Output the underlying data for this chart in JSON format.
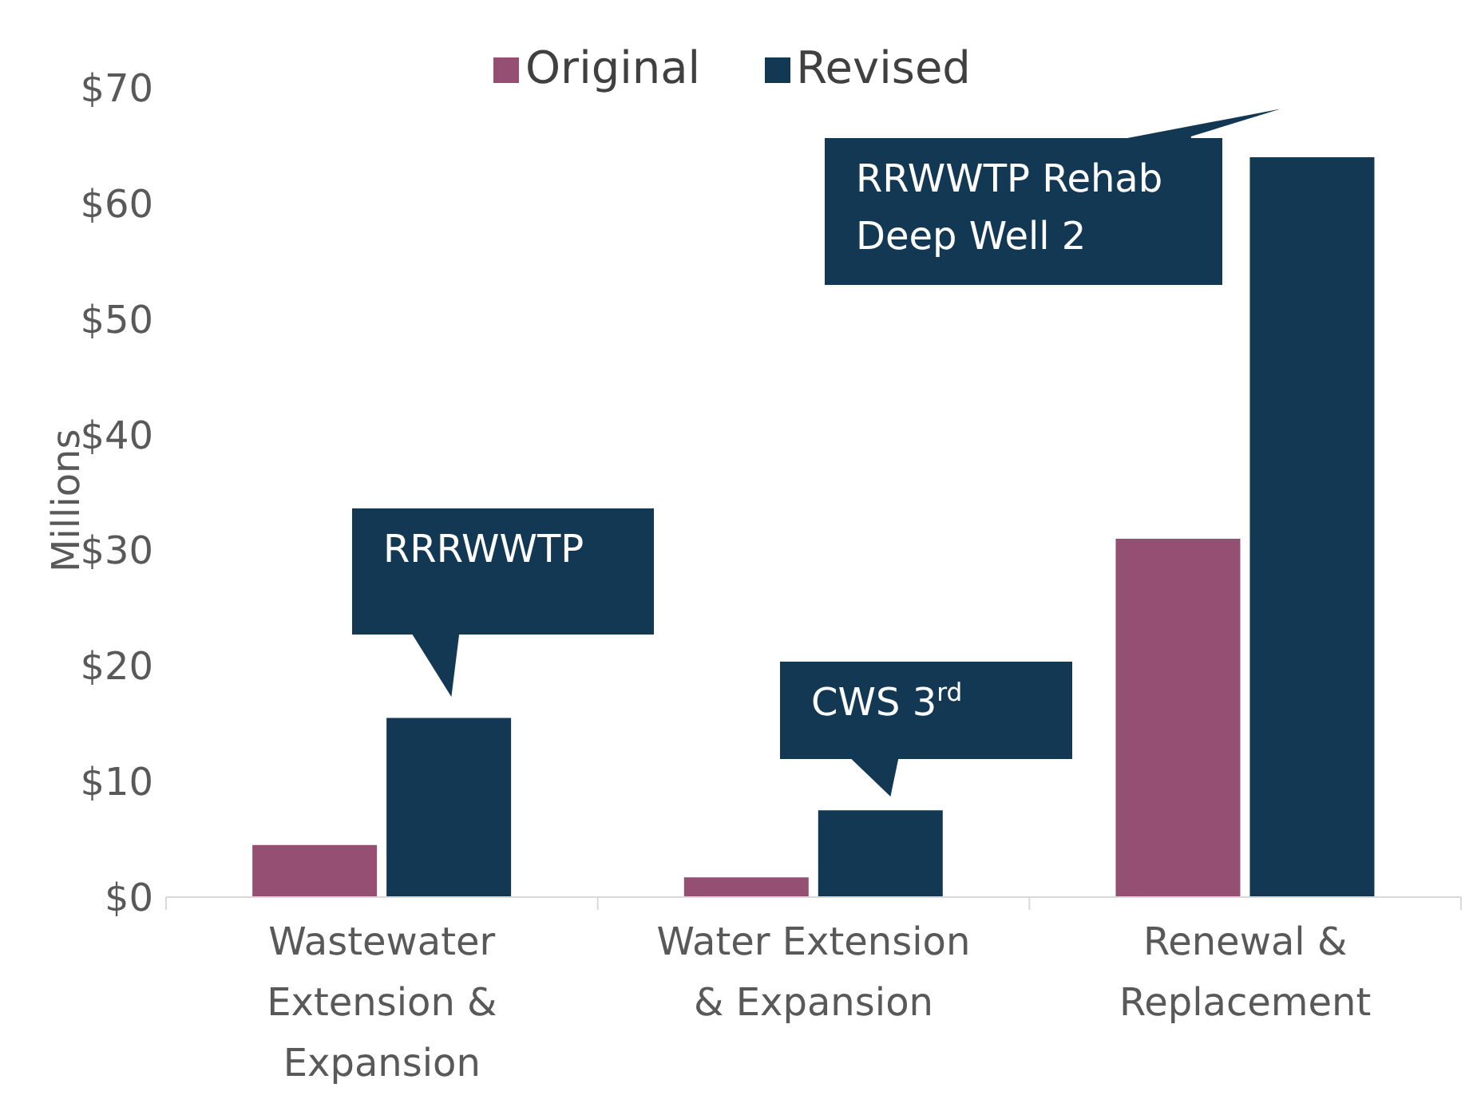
{
  "chart_data": {
    "type": "bar",
    "ylabel": "Millions",
    "categories": [
      "Wastewater Extension & Expansion",
      "Water Extension & Expansion",
      "Renewal & Replacement"
    ],
    "series": [
      {
        "name": "Original",
        "color": "#954f72",
        "values": [
          4.5,
          1.7,
          31
        ]
      },
      {
        "name": "Revised",
        "color": "#133854",
        "values": [
          15.5,
          7.5,
          64
        ]
      }
    ],
    "ylim": [
      0,
      70
    ],
    "yticks": [
      {
        "value": 0,
        "label": "$0"
      },
      {
        "value": 10,
        "label": "$10"
      },
      {
        "value": 20,
        "label": "$20"
      },
      {
        "value": 30,
        "label": "$30"
      },
      {
        "value": 40,
        "label": "$40"
      },
      {
        "value": 50,
        "label": "$50"
      },
      {
        "value": 60,
        "label": "$60"
      },
      {
        "value": 70,
        "label": "$70"
      }
    ],
    "annotations": [
      "RRRWWTP",
      "CWS 3$^{rd}$",
      "RRWWTP Rehab\nDeep Well 2"
    ],
    "legend": "top",
    "grid": false
  }
}
